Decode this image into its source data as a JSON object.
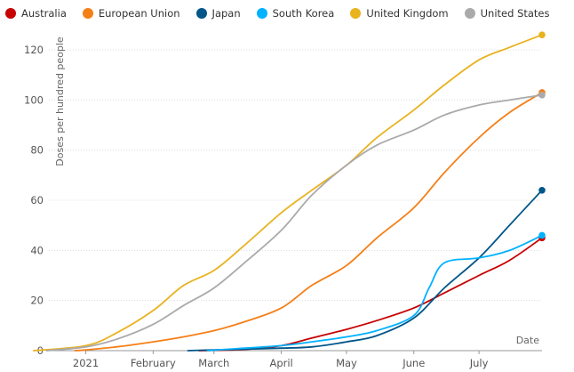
{
  "chart_data": {
    "type": "line",
    "ylabel": "Doses per hundred people",
    "xlabel": "Date",
    "ylim": [
      0,
      125
    ],
    "yticks": [
      0,
      20,
      40,
      60,
      80,
      100,
      120
    ],
    "xlim": [
      "2020-12-15",
      "2021-07-30"
    ],
    "xticks": [
      {
        "date": "2021-01-01",
        "label": "2021"
      },
      {
        "date": "2021-02-01",
        "label": "February"
      },
      {
        "date": "2021-03-01",
        "label": "March"
      },
      {
        "date": "2021-04-01",
        "label": "April"
      },
      {
        "date": "2021-05-01",
        "label": "May"
      },
      {
        "date": "2021-06-01",
        "label": "June"
      },
      {
        "date": "2021-07-01",
        "label": "July"
      }
    ],
    "legend_position": "top-left",
    "series": [
      {
        "name": "Australia",
        "color": "#c70000",
        "x": [
          "2021-02-22",
          "2021-03-15",
          "2021-04-01",
          "2021-04-15",
          "2021-05-01",
          "2021-05-15",
          "2021-06-01",
          "2021-06-15",
          "2021-07-01",
          "2021-07-15",
          "2021-07-30"
        ],
        "y": [
          0,
          0.5,
          2,
          5,
          8.5,
          12,
          17,
          23,
          30,
          36,
          45
        ]
      },
      {
        "name": "European Union",
        "color": "#f57f17",
        "x": [
          "2020-12-27",
          "2021-01-01",
          "2021-01-15",
          "2021-02-01",
          "2021-02-15",
          "2021-03-01",
          "2021-03-15",
          "2021-04-01",
          "2021-04-15",
          "2021-05-01",
          "2021-05-15",
          "2021-06-01",
          "2021-06-15",
          "2021-07-01",
          "2021-07-15",
          "2021-07-30"
        ],
        "y": [
          0,
          0.3,
          1.5,
          3.5,
          5.5,
          8,
          11.5,
          17,
          26,
          34,
          45,
          57,
          71,
          85,
          95,
          103
        ]
      },
      {
        "name": "Japan",
        "color": "#005689",
        "x": [
          "2021-02-17",
          "2021-03-01",
          "2021-03-15",
          "2021-04-01",
          "2021-04-15",
          "2021-05-01",
          "2021-05-15",
          "2021-06-01",
          "2021-06-15",
          "2021-07-01",
          "2021-07-15",
          "2021-07-30"
        ],
        "y": [
          0,
          0.3,
          0.6,
          1,
          1.5,
          3.5,
          6,
          13,
          25,
          37,
          50,
          64
        ]
      },
      {
        "name": "South Korea",
        "color": "#00b2ff",
        "x": [
          "2021-02-26",
          "2021-03-15",
          "2021-04-01",
          "2021-04-15",
          "2021-05-01",
          "2021-05-15",
          "2021-06-01",
          "2021-06-08",
          "2021-06-15",
          "2021-07-01",
          "2021-07-15",
          "2021-07-30"
        ],
        "y": [
          0,
          1,
          2,
          3.5,
          5.5,
          8,
          14,
          25,
          35,
          37,
          40,
          46
        ]
      },
      {
        "name": "United Kingdom",
        "color": "#e9b21f",
        "x": [
          "2020-12-08",
          "2021-01-01",
          "2021-01-15",
          "2021-02-01",
          "2021-02-15",
          "2021-03-01",
          "2021-03-15",
          "2021-04-01",
          "2021-04-15",
          "2021-05-01",
          "2021-05-15",
          "2021-06-01",
          "2021-06-15",
          "2021-07-01",
          "2021-07-15",
          "2021-07-30"
        ],
        "y": [
          0,
          2,
          7,
          16,
          26,
          32,
          42,
          55,
          64,
          74,
          85,
          96,
          106,
          116,
          121,
          126
        ]
      },
      {
        "name": "United States",
        "color": "#aaaaaa",
        "x": [
          "2020-12-14",
          "2021-01-01",
          "2021-01-15",
          "2021-02-01",
          "2021-02-15",
          "2021-03-01",
          "2021-03-15",
          "2021-04-01",
          "2021-04-15",
          "2021-05-01",
          "2021-05-15",
          "2021-06-01",
          "2021-06-15",
          "2021-07-01",
          "2021-07-15",
          "2021-07-30"
        ],
        "y": [
          0,
          1.5,
          4.5,
          10.5,
          18,
          25,
          35,
          48,
          62,
          74,
          82,
          88,
          94,
          98,
          100,
          102
        ]
      }
    ]
  }
}
